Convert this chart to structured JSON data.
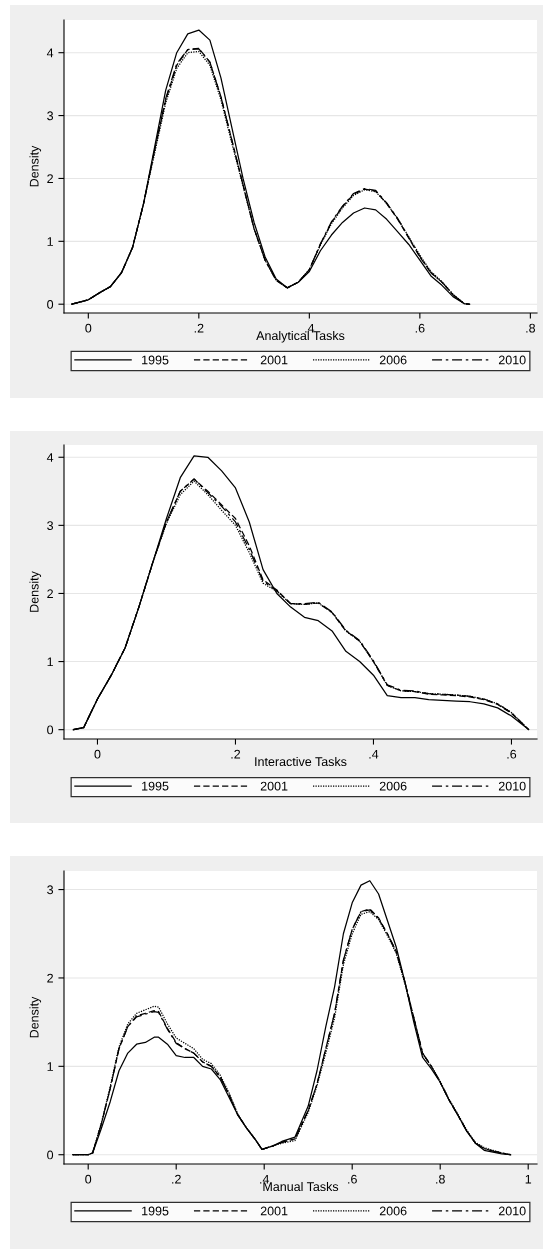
{
  "chart_data": [
    {
      "type": "line",
      "xlabel": "Analytical Tasks",
      "ylabel": "Density",
      "legend": "bottom",
      "grid": "y",
      "x": [
        -0.03,
        0,
        0.02,
        0.04,
        0.06,
        0.08,
        0.1,
        0.12,
        0.14,
        0.16,
        0.18,
        0.2,
        0.22,
        0.24,
        0.26,
        0.28,
        0.3,
        0.32,
        0.34,
        0.36,
        0.38,
        0.4,
        0.42,
        0.44,
        0.46,
        0.48,
        0.5,
        0.52,
        0.54,
        0.56,
        0.58,
        0.6,
        0.62,
        0.64,
        0.66,
        0.68,
        0.69
      ],
      "series": [
        {
          "name": "1995",
          "color": "#000000",
          "line_style": "solid",
          "values": [
            0,
            0.07,
            0.18,
            0.28,
            0.5,
            0.9,
            1.6,
            2.5,
            3.4,
            4.0,
            4.3,
            4.36,
            4.2,
            3.6,
            2.8,
            2.0,
            1.3,
            0.75,
            0.4,
            0.26,
            0.35,
            0.52,
            0.85,
            1.1,
            1.3,
            1.45,
            1.53,
            1.5,
            1.35,
            1.15,
            0.95,
            0.7,
            0.45,
            0.3,
            0.12,
            0.01,
            0
          ]
        },
        {
          "name": "2001",
          "color": "#000000",
          "line_style": "dashed",
          "values": [
            0,
            0.07,
            0.18,
            0.28,
            0.5,
            0.9,
            1.6,
            2.45,
            3.25,
            3.8,
            4.05,
            4.07,
            3.85,
            3.3,
            2.6,
            1.9,
            1.2,
            0.7,
            0.38,
            0.26,
            0.35,
            0.55,
            0.95,
            1.3,
            1.55,
            1.75,
            1.83,
            1.8,
            1.6,
            1.35,
            1.05,
            0.75,
            0.5,
            0.35,
            0.15,
            0.01,
            0
          ]
        },
        {
          "name": "2006",
          "color": "#000000",
          "line_style": "dotted",
          "values": [
            0,
            0.07,
            0.18,
            0.28,
            0.5,
            0.9,
            1.6,
            2.4,
            3.2,
            3.75,
            4.0,
            4.02,
            3.8,
            3.25,
            2.55,
            1.88,
            1.2,
            0.7,
            0.38,
            0.26,
            0.35,
            0.55,
            0.94,
            1.28,
            1.53,
            1.73,
            1.82,
            1.79,
            1.6,
            1.36,
            1.07,
            0.78,
            0.52,
            0.36,
            0.16,
            0.01,
            0
          ]
        },
        {
          "name": "2010",
          "color": "#000000",
          "line_style": "dashdot",
          "values": [
            0,
            0.07,
            0.18,
            0.28,
            0.5,
            0.9,
            1.6,
            2.45,
            3.27,
            3.82,
            4.05,
            4.06,
            3.85,
            3.3,
            2.6,
            1.9,
            1.2,
            0.7,
            0.38,
            0.26,
            0.35,
            0.55,
            0.96,
            1.31,
            1.56,
            1.76,
            1.84,
            1.81,
            1.61,
            1.36,
            1.06,
            0.76,
            0.5,
            0.35,
            0.15,
            0.01,
            0
          ]
        }
      ],
      "xlim": [
        -0.044,
        0.812
      ],
      "xticks": [
        0,
        {
          "value": 0.2,
          "label": ".2"
        },
        {
          "value": 0.4,
          "label": ".4"
        },
        {
          "value": 0.6,
          "label": ".6"
        },
        {
          "value": 0.8,
          "label": ".8"
        }
      ],
      "ylim": [
        -0.14,
        4.52
      ],
      "yticks": [
        0,
        1,
        2,
        3,
        4
      ]
    },
    {
      "type": "line",
      "xlabel": "Interactive Tasks",
      "ylabel": "Density",
      "legend": "bottom",
      "grid": "y",
      "x": [
        -0.035,
        -0.02,
        0,
        0.02,
        0.04,
        0.06,
        0.08,
        0.1,
        0.12,
        0.14,
        0.16,
        0.18,
        0.2,
        0.22,
        0.24,
        0.26,
        0.28,
        0.3,
        0.32,
        0.34,
        0.36,
        0.38,
        0.4,
        0.42,
        0.44,
        0.46,
        0.48,
        0.5,
        0.52,
        0.54,
        0.56,
        0.58,
        0.6,
        0.625
      ],
      "series": [
        {
          "name": "1995",
          "color": "#000000",
          "line_style": "solid",
          "values": [
            0,
            0.03,
            0.45,
            0.8,
            1.2,
            1.8,
            2.45,
            3.1,
            3.7,
            4.02,
            4.0,
            3.8,
            3.55,
            3.05,
            2.35,
            2.0,
            1.8,
            1.65,
            1.6,
            1.45,
            1.15,
            1.0,
            0.8,
            0.5,
            0.47,
            0.47,
            0.44,
            0.43,
            0.42,
            0.41,
            0.38,
            0.32,
            0.2,
            0
          ]
        },
        {
          "name": "2001",
          "color": "#000000",
          "line_style": "dashed",
          "values": [
            0,
            0.03,
            0.45,
            0.8,
            1.2,
            1.8,
            2.45,
            3.05,
            3.5,
            3.68,
            3.5,
            3.3,
            3.1,
            2.7,
            2.2,
            2.05,
            1.85,
            1.84,
            1.86,
            1.72,
            1.45,
            1.3,
            1.0,
            0.65,
            0.57,
            0.56,
            0.52,
            0.51,
            0.5,
            0.48,
            0.44,
            0.37,
            0.24,
            0
          ]
        },
        {
          "name": "2006",
          "color": "#000000",
          "line_style": "dotted",
          "values": [
            0,
            0.03,
            0.45,
            0.8,
            1.2,
            1.8,
            2.45,
            3.03,
            3.45,
            3.65,
            3.45,
            3.22,
            3.0,
            2.6,
            2.15,
            2.03,
            1.85,
            1.84,
            1.86,
            1.72,
            1.45,
            1.3,
            1.0,
            0.65,
            0.57,
            0.56,
            0.53,
            0.52,
            0.51,
            0.49,
            0.45,
            0.38,
            0.25,
            0
          ]
        },
        {
          "name": "2010",
          "color": "#000000",
          "line_style": "dashdot",
          "values": [
            0,
            0.03,
            0.45,
            0.8,
            1.2,
            1.8,
            2.45,
            3.05,
            3.5,
            3.68,
            3.48,
            3.28,
            3.05,
            2.65,
            2.18,
            2.04,
            1.85,
            1.85,
            1.87,
            1.73,
            1.46,
            1.31,
            1.01,
            0.66,
            0.58,
            0.57,
            0.53,
            0.52,
            0.51,
            0.49,
            0.45,
            0.38,
            0.25,
            0
          ]
        }
      ],
      "xlim": [
        -0.0485,
        0.637
      ],
      "xticks": [
        0,
        {
          "value": 0.2,
          "label": ".2"
        },
        {
          "value": 0.4,
          "label": ".4"
        },
        {
          "value": 0.6,
          "label": ".6"
        }
      ],
      "ylim": [
        -0.137,
        4.18
      ],
      "yticks": [
        0,
        1,
        2,
        3,
        4
      ]
    },
    {
      "type": "line",
      "xlabel": "Manual Tasks",
      "ylabel": "Density",
      "legend": "bottom",
      "grid": "y",
      "x": [
        -0.035,
        0,
        0.01,
        0.03,
        0.05,
        0.07,
        0.09,
        0.11,
        0.13,
        0.15,
        0.16,
        0.18,
        0.2,
        0.22,
        0.24,
        0.26,
        0.28,
        0.3,
        0.32,
        0.34,
        0.36,
        0.38,
        0.395,
        0.42,
        0.44,
        0.47,
        0.5,
        0.52,
        0.54,
        0.56,
        0.58,
        0.6,
        0.62,
        0.64,
        0.66,
        0.68,
        0.7,
        0.72,
        0.74,
        0.76,
        0.78,
        0.8,
        0.82,
        0.84,
        0.86,
        0.88,
        0.9,
        0.92,
        0.94,
        0.96
      ],
      "series": [
        {
          "name": "1995",
          "color": "#000000",
          "line_style": "solid",
          "values": [
            0,
            0,
            0.02,
            0.3,
            0.6,
            0.95,
            1.15,
            1.25,
            1.27,
            1.33,
            1.33,
            1.25,
            1.12,
            1.1,
            1.1,
            1.0,
            0.97,
            0.85,
            0.65,
            0.45,
            0.3,
            0.17,
            0.06,
            0.1,
            0.15,
            0.2,
            0.55,
            0.95,
            1.45,
            1.9,
            2.5,
            2.85,
            3.05,
            3.1,
            2.95,
            2.65,
            2.35,
            1.95,
            1.5,
            1.1,
            0.97,
            0.82,
            0.62,
            0.45,
            0.27,
            0.13,
            0.05,
            0.03,
            0.01,
            0
          ]
        },
        {
          "name": "2001",
          "color": "#000000",
          "line_style": "dashed",
          "values": [
            0,
            0,
            0.02,
            0.35,
            0.75,
            1.2,
            1.45,
            1.57,
            1.6,
            1.63,
            1.62,
            1.43,
            1.27,
            1.2,
            1.15,
            1.05,
            1.0,
            0.88,
            0.68,
            0.45,
            0.3,
            0.17,
            0.06,
            0.1,
            0.14,
            0.18,
            0.5,
            0.8,
            1.2,
            1.6,
            2.2,
            2.55,
            2.75,
            2.78,
            2.68,
            2.5,
            2.3,
            1.95,
            1.55,
            1.15,
            1.0,
            0.82,
            0.62,
            0.45,
            0.27,
            0.13,
            0.07,
            0.04,
            0.02,
            0
          ]
        },
        {
          "name": "2006",
          "color": "#000000",
          "line_style": "dotted",
          "values": [
            0,
            0,
            0.02,
            0.36,
            0.77,
            1.22,
            1.48,
            1.6,
            1.64,
            1.68,
            1.67,
            1.48,
            1.32,
            1.26,
            1.2,
            1.08,
            1.03,
            0.9,
            0.7,
            0.46,
            0.3,
            0.17,
            0.06,
            0.1,
            0.13,
            0.16,
            0.48,
            0.78,
            1.15,
            1.55,
            2.15,
            2.5,
            2.72,
            2.75,
            2.66,
            2.48,
            2.28,
            1.93,
            1.54,
            1.14,
            1.0,
            0.83,
            0.63,
            0.46,
            0.28,
            0.14,
            0.08,
            0.05,
            0.02,
            0
          ]
        },
        {
          "name": "2010",
          "color": "#000000",
          "line_style": "dashdot",
          "values": [
            0,
            0,
            0.02,
            0.35,
            0.75,
            1.2,
            1.45,
            1.56,
            1.59,
            1.62,
            1.61,
            1.42,
            1.26,
            1.2,
            1.15,
            1.05,
            1.0,
            0.88,
            0.68,
            0.45,
            0.3,
            0.17,
            0.06,
            0.1,
            0.14,
            0.18,
            0.5,
            0.8,
            1.2,
            1.6,
            2.2,
            2.55,
            2.75,
            2.77,
            2.67,
            2.5,
            2.3,
            1.95,
            1.55,
            1.15,
            1.0,
            0.82,
            0.62,
            0.45,
            0.27,
            0.13,
            0.07,
            0.04,
            0.02,
            0
          ]
        }
      ],
      "xlim": [
        -0.055,
        1.02
      ],
      "xticks": [
        0,
        {
          "value": 0.2,
          "label": ".2"
        },
        {
          "value": 0.4,
          "label": ".4"
        },
        {
          "value": 0.6,
          "label": ".6"
        },
        {
          "value": 0.8,
          "label": ".8"
        },
        1
      ],
      "ylim": [
        -0.105,
        3.21
      ],
      "yticks": [
        0,
        1,
        2,
        3
      ]
    }
  ]
}
